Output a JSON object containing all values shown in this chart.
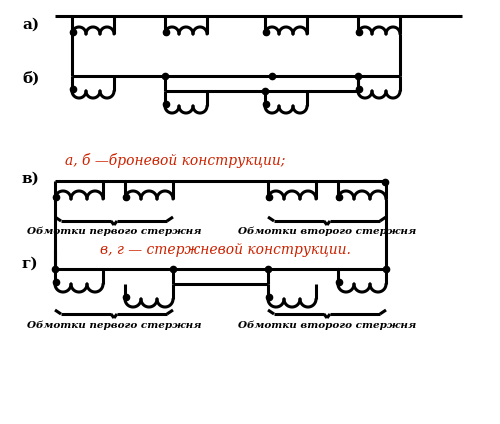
{
  "title_a": "а)",
  "title_b": "б)",
  "title_c": "в)",
  "title_d": "г)",
  "label_ab": "а, б —броневой конструкции;",
  "label_vg": "в, г — стержневой конструкции.",
  "label_first": "Обмотки первого стержня",
  "label_second": "Обмотки второго стержня",
  "bg_color": "#ffffff",
  "line_color": "#000000",
  "red_color": "#cc2200",
  "lw": 2.2,
  "dot_size": 4.5
}
